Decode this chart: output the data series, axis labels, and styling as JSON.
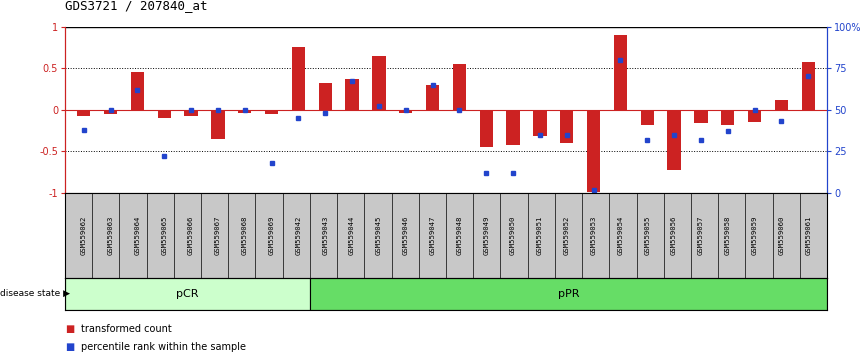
{
  "title": "GDS3721 / 207840_at",
  "samples": [
    "GSM559062",
    "GSM559063",
    "GSM559064",
    "GSM559065",
    "GSM559066",
    "GSM559067",
    "GSM559068",
    "GSM559069",
    "GSM559042",
    "GSM559043",
    "GSM559044",
    "GSM559045",
    "GSM559046",
    "GSM559047",
    "GSM559048",
    "GSM559049",
    "GSM559050",
    "GSM559051",
    "GSM559052",
    "GSM559053",
    "GSM559054",
    "GSM559055",
    "GSM559056",
    "GSM559057",
    "GSM559058",
    "GSM559059",
    "GSM559060",
    "GSM559061"
  ],
  "red_bars": [
    -0.08,
    -0.05,
    0.45,
    -0.1,
    -0.08,
    -0.35,
    -0.04,
    -0.05,
    0.75,
    0.32,
    0.37,
    0.65,
    -0.04,
    0.3,
    0.55,
    -0.45,
    -0.42,
    -0.32,
    -0.4,
    -0.99,
    0.9,
    -0.18,
    -0.72,
    -0.16,
    -0.18,
    -0.15,
    0.12,
    0.57
  ],
  "blue_dots": [
    0.38,
    0.5,
    0.62,
    0.22,
    0.5,
    0.5,
    0.5,
    0.18,
    0.45,
    0.48,
    0.67,
    0.52,
    0.5,
    0.65,
    0.5,
    0.12,
    0.12,
    0.35,
    0.35,
    0.02,
    0.8,
    0.32,
    0.35,
    0.32,
    0.37,
    0.5,
    0.43,
    0.7
  ],
  "pcr_count": 9,
  "ppr_count": 19,
  "bar_color": "#cc2222",
  "dot_color": "#2244cc",
  "pcr_color": "#ccffcc",
  "ppr_color": "#66dd66",
  "ylim": [
    -1.0,
    1.0
  ],
  "yticks_left": [
    -1.0,
    -0.5,
    0.0,
    0.5,
    1.0
  ],
  "ytick_labels_left": [
    "-1",
    "-0.5",
    "0",
    "0.5",
    "1"
  ],
  "right_yticks": [
    0,
    25,
    50,
    75,
    100
  ],
  "right_ytick_labels": [
    "0",
    "25",
    "50",
    "75",
    "100%"
  ],
  "zero_line_color": "#cc2222",
  "dotted_line_color": "#000000",
  "bar_width": 0.5
}
